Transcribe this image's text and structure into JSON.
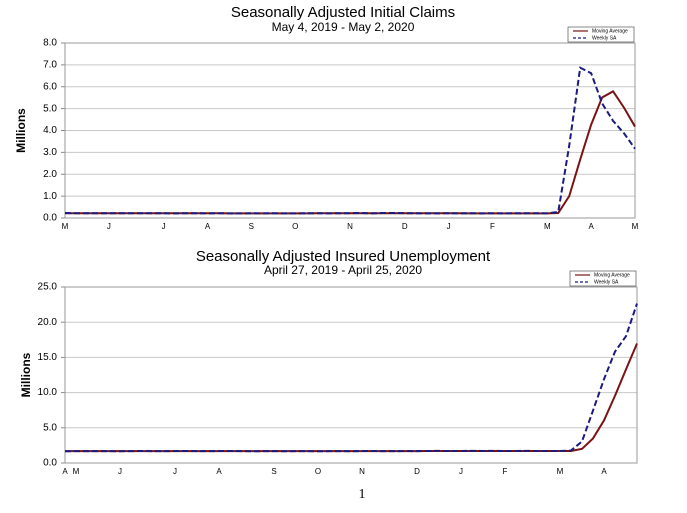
{
  "chart_data": [
    {
      "type": "line",
      "title": "Seasonally Adjusted Initial Claims",
      "subtitle": "May 4, 2019 - May 2, 2020",
      "ylabel": "Millions",
      "categories": [
        "M",
        null,
        null,
        null,
        "J",
        null,
        null,
        null,
        null,
        "J",
        null,
        null,
        null,
        "A",
        null,
        null,
        null,
        "S",
        null,
        null,
        null,
        "O",
        null,
        null,
        null,
        null,
        "N",
        null,
        null,
        null,
        null,
        "D",
        null,
        null,
        null,
        "J",
        null,
        null,
        null,
        "F",
        null,
        null,
        null,
        null,
        "M",
        null,
        null,
        null,
        "A",
        null,
        null,
        null,
        "M"
      ],
      "series": [
        {
          "name": "Moving Average",
          "color": "#7a1414",
          "linestyle": "solid",
          "values": [
            0.22,
            0.22,
            0.22,
            0.22,
            0.22,
            0.22,
            0.22,
            0.22,
            0.22,
            0.22,
            0.22,
            0.22,
            0.22,
            0.22,
            0.22,
            0.21,
            0.21,
            0.21,
            0.21,
            0.21,
            0.21,
            0.21,
            0.21,
            0.22,
            0.22,
            0.22,
            0.22,
            0.22,
            0.22,
            0.22,
            0.22,
            0.22,
            0.22,
            0.22,
            0.22,
            0.22,
            0.22,
            0.21,
            0.21,
            0.21,
            0.21,
            0.21,
            0.21,
            0.21,
            0.21,
            0.23,
            1.0,
            2.67,
            4.27,
            5.51,
            5.79,
            5.04,
            4.18
          ]
        },
        {
          "name": "Weekly SA",
          "color": "#1a1a80",
          "linestyle": "dashed",
          "values": [
            0.23,
            0.22,
            0.22,
            0.22,
            0.22,
            0.22,
            0.22,
            0.22,
            0.22,
            0.22,
            0.21,
            0.22,
            0.22,
            0.21,
            0.22,
            0.21,
            0.21,
            0.22,
            0.21,
            0.22,
            0.21,
            0.21,
            0.22,
            0.22,
            0.21,
            0.22,
            0.22,
            0.23,
            0.21,
            0.23,
            0.23,
            0.22,
            0.22,
            0.21,
            0.21,
            0.22,
            0.21,
            0.22,
            0.21,
            0.22,
            0.21,
            0.22,
            0.22,
            0.22,
            0.21,
            0.28,
            3.31,
            6.87,
            6.62,
            5.24,
            4.44,
            3.87,
            3.17
          ]
        }
      ],
      "ylim": [
        0,
        8
      ],
      "yticks": [
        {
          "value": 0,
          "label": "0.0"
        },
        {
          "value": 1,
          "label": "1.0"
        },
        {
          "value": 2,
          "label": "2.0"
        },
        {
          "value": 3,
          "label": "3.0"
        },
        {
          "value": 4,
          "label": "4.0"
        },
        {
          "value": 5,
          "label": "5.0"
        },
        {
          "value": 6,
          "label": "6.0"
        },
        {
          "value": 7,
          "label": "7.0"
        },
        {
          "value": 8,
          "label": "8.0"
        }
      ],
      "grid": true,
      "legend": "upper right"
    },
    {
      "type": "line",
      "title": "Seasonally Adjusted Insured Unemployment",
      "subtitle": "April 27, 2019 - April 25, 2020",
      "ylabel": "Millions",
      "categories": [
        "A",
        "M",
        null,
        null,
        null,
        "J",
        null,
        null,
        null,
        null,
        "J",
        null,
        null,
        null,
        "A",
        null,
        null,
        null,
        null,
        "S",
        null,
        null,
        null,
        "O",
        null,
        null,
        null,
        "N",
        null,
        null,
        null,
        null,
        "D",
        null,
        null,
        null,
        "J",
        null,
        null,
        null,
        "F",
        null,
        null,
        null,
        null,
        "M",
        null,
        null,
        null,
        "A",
        null,
        null,
        null
      ],
      "series": [
        {
          "name": "Moving Average",
          "color": "#7a1414",
          "linestyle": "solid",
          "values": [
            1.68,
            1.68,
            1.68,
            1.68,
            1.68,
            1.68,
            1.69,
            1.69,
            1.69,
            1.69,
            1.69,
            1.69,
            1.69,
            1.69,
            1.69,
            1.69,
            1.69,
            1.68,
            1.68,
            1.68,
            1.68,
            1.68,
            1.68,
            1.68,
            1.68,
            1.68,
            1.68,
            1.69,
            1.69,
            1.69,
            1.69,
            1.69,
            1.69,
            1.7,
            1.7,
            1.7,
            1.7,
            1.71,
            1.71,
            1.71,
            1.71,
            1.71,
            1.71,
            1.71,
            1.71,
            1.71,
            1.71,
            2.01,
            3.49,
            6.05,
            9.55,
            13.3,
            16.97
          ]
        },
        {
          "name": "Weekly SA",
          "color": "#1a1a80",
          "linestyle": "dashed",
          "values": [
            1.67,
            1.68,
            1.68,
            1.69,
            1.68,
            1.67,
            1.69,
            1.7,
            1.69,
            1.68,
            1.7,
            1.71,
            1.69,
            1.68,
            1.7,
            1.71,
            1.69,
            1.67,
            1.68,
            1.69,
            1.67,
            1.68,
            1.69,
            1.67,
            1.68,
            1.69,
            1.67,
            1.7,
            1.71,
            1.68,
            1.69,
            1.7,
            1.69,
            1.71,
            1.72,
            1.7,
            1.71,
            1.72,
            1.71,
            1.72,
            1.7,
            1.71,
            1.72,
            1.7,
            1.71,
            1.7,
            1.78,
            3.06,
            7.45,
            11.91,
            15.82,
            18.01,
            22.65
          ]
        }
      ],
      "ylim": [
        0,
        25
      ],
      "yticks": [
        {
          "value": 0,
          "label": "0.0"
        },
        {
          "value": 5,
          "label": "5.0"
        },
        {
          "value": 10,
          "label": "10.0"
        },
        {
          "value": 15,
          "label": "15.0"
        },
        {
          "value": 20,
          "label": "20.0"
        },
        {
          "value": 25,
          "label": "25.0"
        }
      ],
      "grid": true,
      "legend": "upper right"
    }
  ],
  "page_number": "1"
}
